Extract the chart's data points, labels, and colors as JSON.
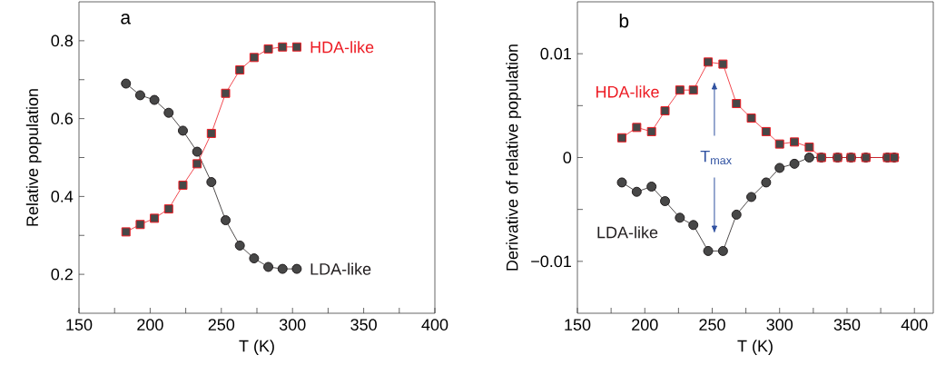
{
  "chart_data": [
    {
      "type": "line",
      "xlabel": "T (K)",
      "ylabel": "Relative population",
      "annotations": [
        "a"
      ],
      "x": [
        183,
        193,
        203,
        213,
        223,
        233,
        243,
        253,
        263,
        273,
        283,
        293,
        303
      ],
      "series": [
        {
          "name": "LDA-like",
          "color": "#231f20",
          "marker": "circle",
          "values": [
            0.69,
            0.66,
            0.648,
            0.615,
            0.569,
            0.515,
            0.437,
            0.339,
            0.274,
            0.241,
            0.219,
            0.214,
            0.214
          ]
        },
        {
          "name": "HDA-like",
          "color": "#ed1c24",
          "marker": "square",
          "values": [
            0.309,
            0.328,
            0.344,
            0.368,
            0.429,
            0.484,
            0.562,
            0.665,
            0.725,
            0.757,
            0.779,
            0.784,
            0.784
          ]
        }
      ],
      "xlim": [
        150,
        400
      ],
      "ylim": [
        0.1,
        0.9
      ],
      "xticks": [
        150,
        {
          "value": 175,
          "label": null
        },
        200,
        {
          "value": 225,
          "label": null
        },
        250,
        {
          "value": 275,
          "label": null
        },
        300,
        {
          "value": 325,
          "label": null
        },
        350,
        {
          "value": 375,
          "label": null
        },
        400
      ],
      "yticks": [
        0.2,
        {
          "value": 0.3,
          "label": null
        },
        0.4,
        {
          "value": 0.5,
          "label": null
        },
        0.6,
        {
          "value": 0.7,
          "label": null
        },
        0.8
      ]
    },
    {
      "type": "line",
      "xlabel": "T (K)",
      "ylabel": "Derivative of relative population",
      "annotations": [
        "b",
        "T$_{max}$"
      ],
      "x": [
        183,
        194,
        205,
        215,
        226,
        236,
        247,
        258,
        268,
        279,
        290,
        300,
        311,
        322,
        331,
        343,
        353,
        364,
        380,
        385
      ],
      "series": [
        {
          "name": "LDA-like",
          "color": "#231f20",
          "marker": "circle",
          "values": [
            -0.0024,
            -0.0033,
            -0.0028,
            -0.0042,
            -0.0058,
            -0.0065,
            -0.009,
            -0.009,
            -0.0055,
            -0.0038,
            -0.0024,
            -0.001,
            -0.0006,
            0,
            0,
            0,
            0,
            0,
            0,
            0
          ]
        },
        {
          "name": "HDA-like",
          "color": "#ed1c24",
          "marker": "square",
          "values": [
            0.0019,
            0.0029,
            0.0025,
            0.0045,
            0.0065,
            0.0065,
            0.0092,
            0.009,
            0.0052,
            0.0038,
            0.0025,
            0.0013,
            0.0015,
            0.001,
            0,
            0,
            0,
            0,
            0,
            0
          ]
        }
      ],
      "xlim": [
        150,
        414
      ],
      "ylim": [
        -0.015,
        0.015
      ],
      "xticks": [
        150,
        {
          "value": 175,
          "label": null
        },
        200,
        {
          "value": 225,
          "label": null
        },
        250,
        {
          "value": 275,
          "label": null
        },
        300,
        {
          "value": 325,
          "label": null
        },
        350,
        {
          "value": 375,
          "label": null
        },
        400
      ],
      "yticks": [
        {
          "value": -0.01,
          "label": "−0.01"
        },
        {
          "value": -0.005,
          "label": null
        },
        0,
        {
          "value": 0.005,
          "label": null
        },
        0.01
      ]
    }
  ]
}
